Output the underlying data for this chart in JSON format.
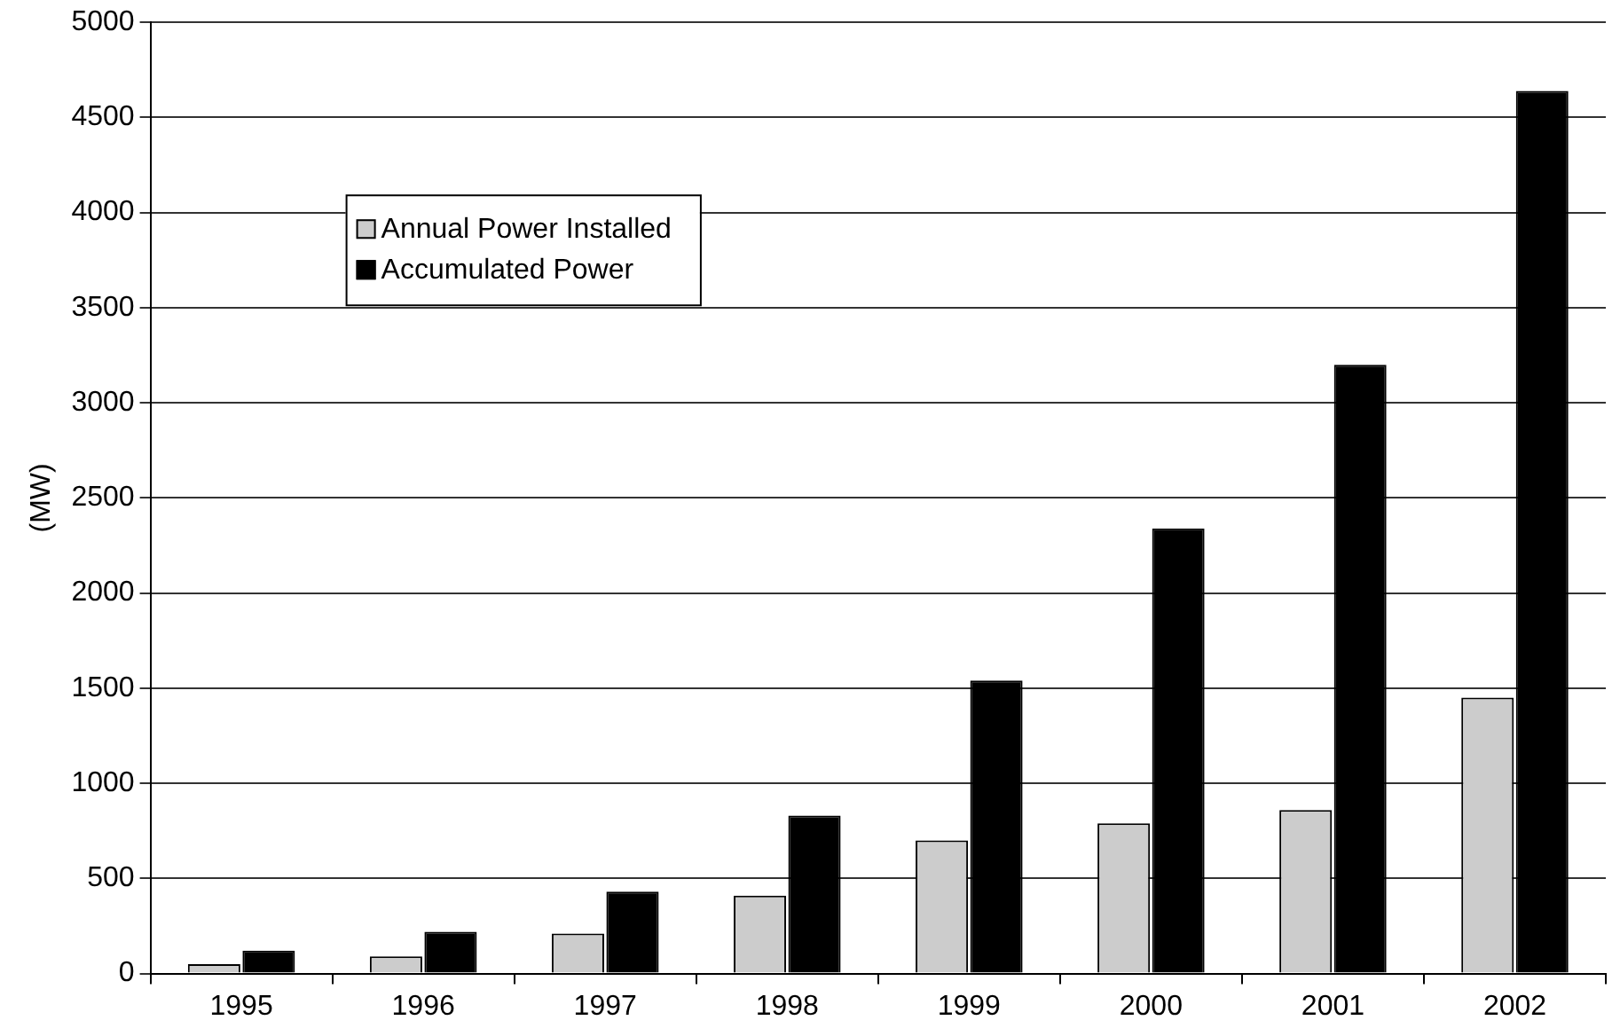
{
  "chart_data": {
    "type": "bar",
    "ylabel": "(MW)",
    "categories": [
      "1995",
      "1996",
      "1997",
      "1998",
      "1999",
      "2000",
      "2001",
      "2002"
    ],
    "series": [
      {
        "name": "Annual Power Installed",
        "color": "#cccccc",
        "values": [
          50,
          90,
          210,
          410,
          700,
          790,
          860,
          1450
        ]
      },
      {
        "name": "Accumulated Power",
        "color": "#000000",
        "values": [
          120,
          220,
          430,
          830,
          1540,
          2340,
          3200,
          4640
        ]
      }
    ],
    "ylim": [
      0,
      5000
    ],
    "yticks": [
      0,
      500,
      1000,
      1500,
      2000,
      2500,
      3000,
      3500,
      4000,
      4500,
      5000
    ],
    "grid": "y",
    "legend": "top left"
  }
}
